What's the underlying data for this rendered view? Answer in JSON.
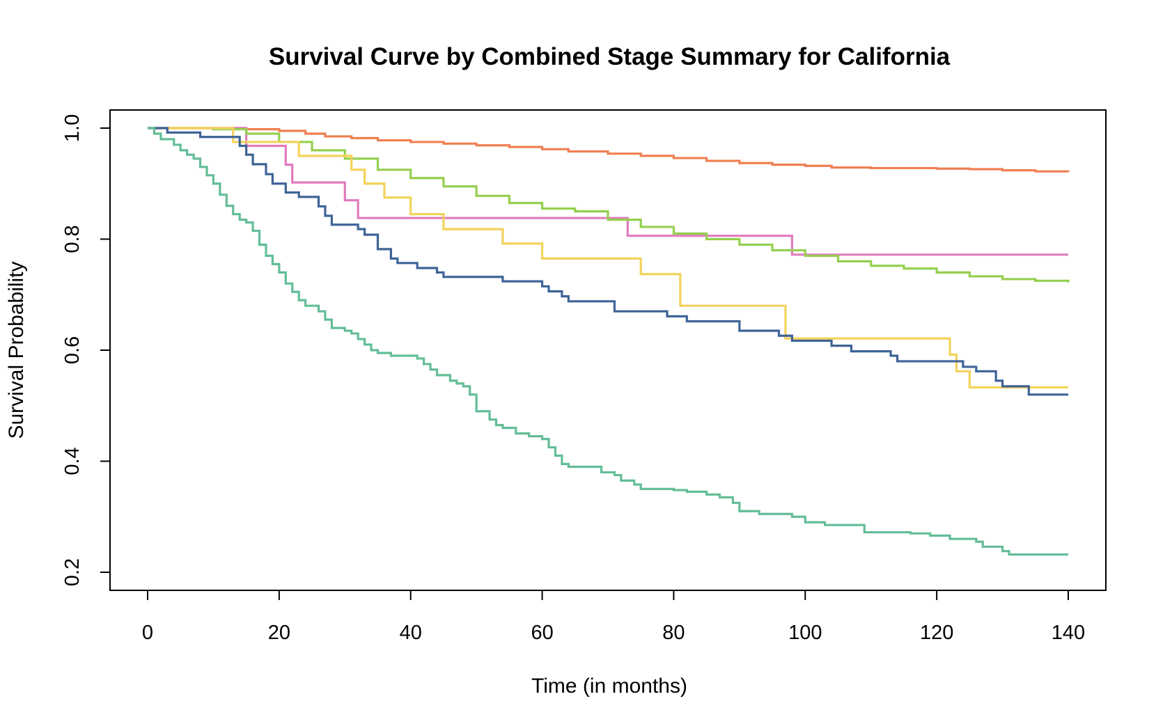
{
  "chart_data": {
    "type": "line",
    "step": true,
    "title": "Survival Curve by Combined Stage Summary for California",
    "xlabel": "Time (in months)",
    "ylabel": "Survival Probability",
    "xlim": [
      0,
      140
    ],
    "ylim": [
      0.2,
      1.0
    ],
    "xticks": [
      "0",
      "20",
      "40",
      "60",
      "80",
      "100",
      "120",
      "140"
    ],
    "yticks": [
      "0.2",
      "0.4",
      "0.6",
      "0.8",
      "1.0"
    ],
    "grid": false,
    "legend": "none",
    "series": [
      {
        "color": "#f07f52",
        "points": [
          [
            0,
            1.0
          ],
          [
            15,
            0.998
          ],
          [
            20,
            0.995
          ],
          [
            24,
            0.99
          ],
          [
            27,
            0.985
          ],
          [
            31,
            0.982
          ],
          [
            35,
            0.978
          ],
          [
            40,
            0.975
          ],
          [
            45,
            0.972
          ],
          [
            50,
            0.969
          ],
          [
            55,
            0.966
          ],
          [
            60,
            0.962
          ],
          [
            64,
            0.958
          ],
          [
            70,
            0.954
          ],
          [
            75,
            0.95
          ],
          [
            80,
            0.946
          ],
          [
            85,
            0.941
          ],
          [
            90,
            0.937
          ],
          [
            95,
            0.934
          ],
          [
            100,
            0.932
          ],
          [
            104,
            0.929
          ],
          [
            110,
            0.928
          ],
          [
            120,
            0.927
          ],
          [
            125,
            0.926
          ],
          [
            130,
            0.924
          ],
          [
            135,
            0.922
          ],
          [
            140,
            0.921
          ]
        ]
      },
      {
        "color": "#e07bbd",
        "points": [
          [
            0,
            1.0
          ],
          [
            15,
            0.968
          ],
          [
            21,
            0.934
          ],
          [
            22,
            0.902
          ],
          [
            30,
            0.87
          ],
          [
            32,
            0.838
          ],
          [
            73,
            0.806
          ],
          [
            98,
            0.772
          ],
          [
            140,
            0.772
          ]
        ]
      },
      {
        "color": "#94cf4e",
        "points": [
          [
            0,
            1.0
          ],
          [
            10,
            0.998
          ],
          [
            15,
            0.99
          ],
          [
            20,
            0.975
          ],
          [
            25,
            0.96
          ],
          [
            30,
            0.945
          ],
          [
            35,
            0.925
          ],
          [
            40,
            0.91
          ],
          [
            45,
            0.895
          ],
          [
            50,
            0.878
          ],
          [
            55,
            0.865
          ],
          [
            60,
            0.855
          ],
          [
            65,
            0.85
          ],
          [
            70,
            0.835
          ],
          [
            75,
            0.822
          ],
          [
            80,
            0.81
          ],
          [
            85,
            0.8
          ],
          [
            90,
            0.79
          ],
          [
            95,
            0.78
          ],
          [
            100,
            0.77
          ],
          [
            105,
            0.76
          ],
          [
            110,
            0.752
          ],
          [
            115,
            0.747
          ],
          [
            120,
            0.74
          ],
          [
            125,
            0.733
          ],
          [
            130,
            0.728
          ],
          [
            135,
            0.725
          ],
          [
            140,
            0.722
          ]
        ]
      },
      {
        "color": "#f3d25b",
        "points": [
          [
            0,
            1.0
          ],
          [
            13,
            0.975
          ],
          [
            23,
            0.95
          ],
          [
            28,
            0.95
          ],
          [
            31,
            0.925
          ],
          [
            33,
            0.9
          ],
          [
            36,
            0.875
          ],
          [
            40,
            0.845
          ],
          [
            45,
            0.818
          ],
          [
            54,
            0.792
          ],
          [
            60,
            0.765
          ],
          [
            75,
            0.737
          ],
          [
            81,
            0.68
          ],
          [
            97,
            0.621
          ],
          [
            122,
            0.592
          ],
          [
            123,
            0.562
          ],
          [
            125,
            0.533
          ],
          [
            140,
            0.533
          ]
        ]
      },
      {
        "color": "#3e6497",
        "points": [
          [
            0,
            1.0
          ],
          [
            3,
            0.992
          ],
          [
            8,
            0.984
          ],
          [
            14,
            0.968
          ],
          [
            15,
            0.952
          ],
          [
            16,
            0.935
          ],
          [
            18,
            0.917
          ],
          [
            19,
            0.9
          ],
          [
            21,
            0.884
          ],
          [
            23,
            0.876
          ],
          [
            26,
            0.859
          ],
          [
            27,
            0.842
          ],
          [
            28,
            0.826
          ],
          [
            32,
            0.818
          ],
          [
            33,
            0.808
          ],
          [
            35,
            0.782
          ],
          [
            37,
            0.765
          ],
          [
            38,
            0.757
          ],
          [
            41,
            0.748
          ],
          [
            44,
            0.74
          ],
          [
            45,
            0.732
          ],
          [
            54,
            0.724
          ],
          [
            60,
            0.715
          ],
          [
            61,
            0.706
          ],
          [
            63,
            0.697
          ],
          [
            64,
            0.688
          ],
          [
            71,
            0.67
          ],
          [
            79,
            0.661
          ],
          [
            82,
            0.652
          ],
          [
            90,
            0.635
          ],
          [
            96,
            0.626
          ],
          [
            98,
            0.617
          ],
          [
            104,
            0.608
          ],
          [
            107,
            0.598
          ],
          [
            113,
            0.59
          ],
          [
            114,
            0.58
          ],
          [
            122,
            0.58
          ],
          [
            124,
            0.57
          ],
          [
            126,
            0.562
          ],
          [
            129,
            0.545
          ],
          [
            130,
            0.535
          ],
          [
            134,
            0.52
          ],
          [
            140,
            0.52
          ]
        ]
      },
      {
        "color": "#63bd97",
        "points": [
          [
            0,
            1.0
          ],
          [
            1,
            0.99
          ],
          [
            2,
            0.98
          ],
          [
            4,
            0.97
          ],
          [
            5,
            0.96
          ],
          [
            6,
            0.952
          ],
          [
            7,
            0.945
          ],
          [
            8,
            0.93
          ],
          [
            9,
            0.915
          ],
          [
            10,
            0.9
          ],
          [
            11,
            0.88
          ],
          [
            12,
            0.86
          ],
          [
            13,
            0.845
          ],
          [
            14,
            0.835
          ],
          [
            15,
            0.83
          ],
          [
            16,
            0.815
          ],
          [
            17,
            0.79
          ],
          [
            18,
            0.77
          ],
          [
            19,
            0.755
          ],
          [
            20,
            0.74
          ],
          [
            21,
            0.72
          ],
          [
            22,
            0.705
          ],
          [
            23,
            0.69
          ],
          [
            24,
            0.68
          ],
          [
            26,
            0.67
          ],
          [
            27,
            0.655
          ],
          [
            28,
            0.64
          ],
          [
            30,
            0.635
          ],
          [
            31,
            0.63
          ],
          [
            32,
            0.62
          ],
          [
            33,
            0.61
          ],
          [
            34,
            0.6
          ],
          [
            35,
            0.595
          ],
          [
            37,
            0.59
          ],
          [
            41,
            0.585
          ],
          [
            42,
            0.575
          ],
          [
            43,
            0.565
          ],
          [
            44,
            0.555
          ],
          [
            46,
            0.545
          ],
          [
            47,
            0.54
          ],
          [
            48,
            0.535
          ],
          [
            49,
            0.52
          ],
          [
            50,
            0.49
          ],
          [
            52,
            0.475
          ],
          [
            53,
            0.465
          ],
          [
            54,
            0.46
          ],
          [
            56,
            0.45
          ],
          [
            58,
            0.445
          ],
          [
            60,
            0.44
          ],
          [
            61,
            0.425
          ],
          [
            62,
            0.41
          ],
          [
            63,
            0.395
          ],
          [
            64,
            0.39
          ],
          [
            69,
            0.38
          ],
          [
            71,
            0.375
          ],
          [
            72,
            0.365
          ],
          [
            74,
            0.358
          ],
          [
            75,
            0.35
          ],
          [
            80,
            0.348
          ],
          [
            82,
            0.345
          ],
          [
            85,
            0.34
          ],
          [
            87,
            0.335
          ],
          [
            89,
            0.325
          ],
          [
            90,
            0.31
          ],
          [
            93,
            0.305
          ],
          [
            98,
            0.3
          ],
          [
            100,
            0.29
          ],
          [
            103,
            0.285
          ],
          [
            109,
            0.272
          ],
          [
            116,
            0.27
          ],
          [
            119,
            0.266
          ],
          [
            122,
            0.26
          ],
          [
            126,
            0.255
          ],
          [
            127,
            0.246
          ],
          [
            130,
            0.238
          ],
          [
            131,
            0.232
          ],
          [
            140,
            0.232
          ]
        ]
      }
    ]
  }
}
